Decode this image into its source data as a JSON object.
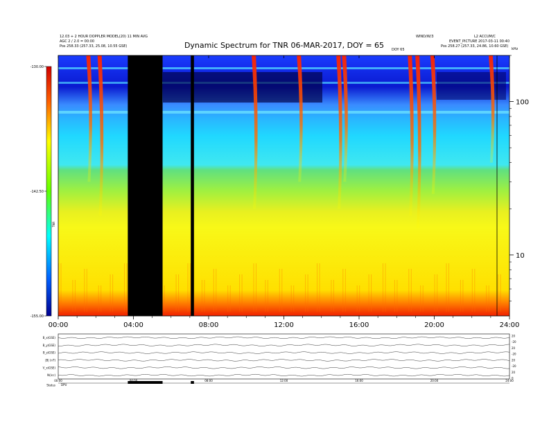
{
  "header": {
    "left_line1": "12.03 + 2 HOUR DOPPLER MODEL(20) 11 MIN AVG",
    "left_line2": "AGC 2 / 2.0 = 00:00",
    "left_line3": "Pos 258.33 (257.33, 25.08, 10.55 GSE)",
    "right_top1": "WIND/W/3",
    "right_top2": "L2 ACCUM/C",
    "right_line2": "EVENT_PICTURE 2017-03-11 00:40",
    "right_line3": "Pos 258.27 (257.33, 24.86, 10.60 GSE)",
    "doy_marker": "DOY 65",
    "corner_label": "kHz"
  },
  "chart_data": {
    "type": "heatmap",
    "title": "Dynamic Spectrum for TNR 06-MAR-2017, DOY = 65",
    "x": {
      "ticks": [
        "00:00",
        "04:00",
        "08:00",
        "12:00",
        "16:00",
        "20:00",
        "24:00"
      ],
      "range_hours": [
        0,
        24
      ]
    },
    "y": {
      "scale": "log",
      "range": [
        4,
        200
      ],
      "tick_labels": [
        "100",
        "10"
      ],
      "tick_values": [
        100,
        10
      ]
    },
    "colorbar": {
      "label": "TNR",
      "tick_labels": [
        "-130.00",
        "-142.50",
        "-155.00"
      ],
      "tick_values": [
        -130,
        -142.5,
        -155
      ],
      "range": [
        -155,
        -130
      ]
    },
    "data_gaps": [
      {
        "start_hour": 3.7,
        "end_hour": 5.55
      },
      {
        "start_hour": 7.05,
        "end_hour": 7.22
      }
    ],
    "bursts": [
      {
        "hour": 2.2,
        "f_low": 18,
        "f_high": 200
      },
      {
        "hour": 1.6,
        "f_low": 30,
        "f_high": 200
      },
      {
        "hour": 10.4,
        "f_low": 20,
        "f_high": 200
      },
      {
        "hour": 12.8,
        "f_low": 30,
        "f_high": 200
      },
      {
        "hour": 14.9,
        "f_low": 20,
        "f_high": 200
      },
      {
        "hour": 15.2,
        "f_low": 30,
        "f_high": 200
      },
      {
        "hour": 18.7,
        "f_low": 18,
        "f_high": 200
      },
      {
        "hour": 19.1,
        "f_low": 15,
        "f_high": 200
      },
      {
        "hour": 19.9,
        "f_low": 25,
        "f_high": 200
      },
      {
        "hour": 23.0,
        "f_low": 40,
        "f_high": 200
      }
    ]
  },
  "bottom_panels": {
    "left_labels": [
      "B_x(GSE)",
      "B_y(GSE)",
      "B_z(GSE)",
      "|B| (nT)",
      "V_x(GSE)",
      "N(/cc)",
      "Status"
    ],
    "right_labels": [
      "20",
      "-20",
      "20",
      "-20",
      "20",
      "-20",
      "20",
      "0"
    ],
    "x_ticks": [
      "00:00",
      "04:00",
      "08:00",
      "12:00",
      "16:00",
      "20:00",
      "24:00"
    ],
    "status_note": "DPU"
  }
}
